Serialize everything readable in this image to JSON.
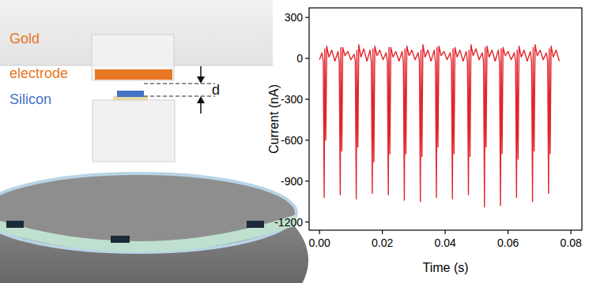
{
  "chart_data": {
    "type": "line",
    "color": "#e3242b",
    "grid": false,
    "xlabel": "Time (s)",
    "ylabel": "Current (nA)",
    "xlim": [
      -0.0033,
      0.0835
    ],
    "ylim": [
      -1260,
      370
    ],
    "xticks": [
      {
        "value": 0,
        "label": "0.00"
      },
      0.02,
      0.04,
      0.06,
      0.08
    ],
    "yticks": [
      -1200,
      -900,
      -600,
      -300,
      0,
      300
    ],
    "x": [
      0.0,
      0.0008,
      0.0012,
      0.0015,
      0.0017,
      0.002,
      0.0023,
      0.003,
      0.0039,
      0.0049,
      0.0059,
      0.0063,
      0.0066,
      0.0068,
      0.0071,
      0.0074,
      0.0081,
      0.009,
      0.01,
      0.011,
      0.0114,
      0.0117,
      0.0119,
      0.0122,
      0.0125,
      0.0132,
      0.0141,
      0.0151,
      0.0161,
      0.0165,
      0.0168,
      0.017,
      0.0173,
      0.0176,
      0.0183,
      0.0192,
      0.0202,
      0.0212,
      0.0216,
      0.0219,
      0.0221,
      0.0224,
      0.0227,
      0.0234,
      0.0243,
      0.0253,
      0.0263,
      0.0267,
      0.027,
      0.0272,
      0.0275,
      0.0278,
      0.0285,
      0.0294,
      0.0304,
      0.0314,
      0.0318,
      0.0321,
      0.0323,
      0.0326,
      0.0329,
      0.0336,
      0.0345,
      0.0355,
      0.0365,
      0.0369,
      0.0372,
      0.0374,
      0.0377,
      0.038,
      0.0387,
      0.0396,
      0.0406,
      0.0416,
      0.042,
      0.0423,
      0.0425,
      0.0428,
      0.0431,
      0.0438,
      0.0447,
      0.0457,
      0.0467,
      0.0471,
      0.0474,
      0.0476,
      0.0479,
      0.0482,
      0.0489,
      0.0498,
      0.0508,
      0.0518,
      0.0522,
      0.0525,
      0.0527,
      0.053,
      0.0533,
      0.054,
      0.0549,
      0.0559,
      0.0569,
      0.0573,
      0.0576,
      0.0578,
      0.0581,
      0.0584,
      0.0591,
      0.06,
      0.061,
      0.062,
      0.0624,
      0.0627,
      0.0629,
      0.0632,
      0.0635,
      0.0642,
      0.0651,
      0.0661,
      0.0671,
      0.0675,
      0.0678,
      0.068,
      0.0683,
      0.0686,
      0.0693,
      0.0702,
      0.0712,
      0.0722,
      0.0726,
      0.0729,
      0.0731,
      0.0734,
      0.0737,
      0.0744,
      0.0753,
      0.0763
    ],
    "values": [
      -10,
      40,
      -20,
      -1020,
      70,
      -600,
      90,
      10,
      60,
      -20,
      50,
      -30,
      -1000,
      80,
      -680,
      80,
      20,
      50,
      -10,
      30,
      -20,
      -1030,
      60,
      -650,
      100,
      10,
      70,
      -20,
      60,
      -30,
      -990,
      70,
      -760,
      90,
      20,
      60,
      -10,
      40,
      -20,
      -1000,
      80,
      -700,
      80,
      10,
      50,
      -20,
      50,
      -30,
      -1040,
      70,
      -700,
      90,
      20,
      60,
      -10,
      40,
      -20,
      -1050,
      60,
      -720,
      100,
      10,
      60,
      -20,
      60,
      -30,
      -1020,
      80,
      -650,
      90,
      20,
      50,
      -10,
      40,
      -20,
      -1030,
      70,
      -700,
      80,
      10,
      60,
      -20,
      50,
      -30,
      -1000,
      60,
      -720,
      100,
      20,
      70,
      -10,
      40,
      -20,
      -1090,
      80,
      -650,
      90,
      10,
      60,
      -20,
      60,
      -30,
      -1080,
      70,
      -700,
      80,
      20,
      50,
      -10,
      40,
      -20,
      -1020,
      60,
      -740,
      90,
      10,
      60,
      -20,
      50,
      -30,
      -1050,
      80,
      -680,
      100,
      20,
      60,
      -10,
      40,
      -20,
      -990,
      70,
      -700,
      90,
      10,
      60,
      -20
    ]
  },
  "diagram": {
    "gold": "Gold",
    "electrode": "electrode",
    "silicon": "Silicon",
    "gap": "d"
  }
}
